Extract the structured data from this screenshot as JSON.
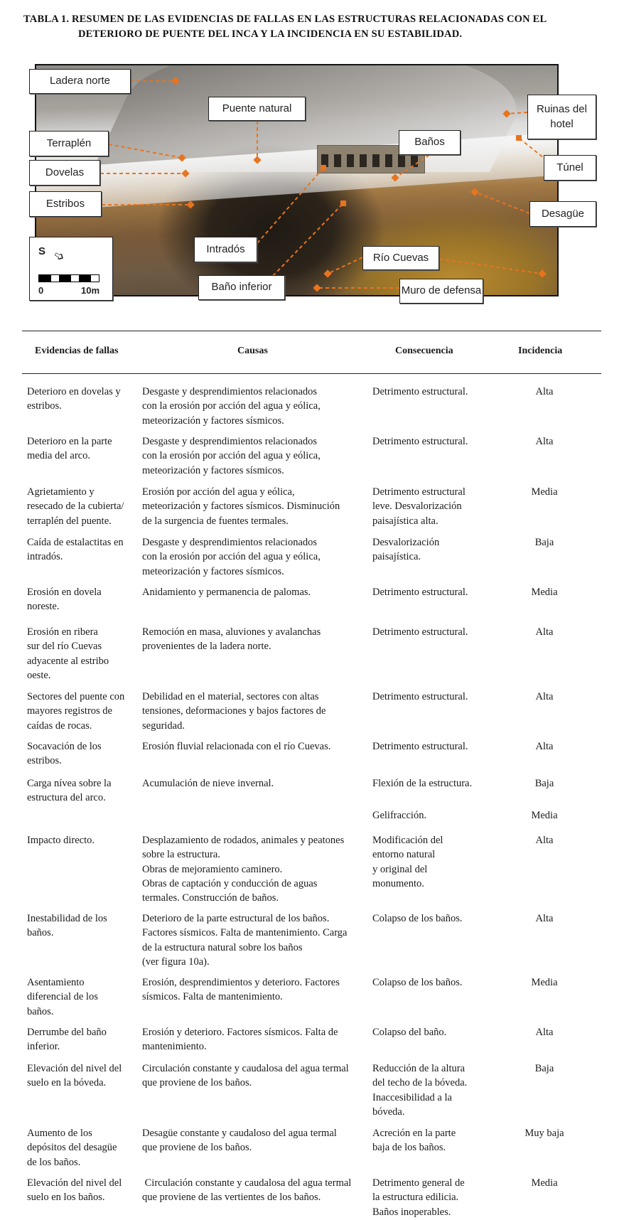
{
  "title": {
    "line1": "TABLA 1. RESUMEN DE LAS EVIDENCIAS DE FALLAS EN LAS ESTRUCTURAS RELACIONADAS CON EL",
    "line2": "DETERIORO DE PUENTE DEL INCA Y LA INCIDENCIA EN SU ESTABILIDAD."
  },
  "figure": {
    "labels": {
      "ladera_norte": "Ladera norte",
      "puente_natural": "Puente natural",
      "ruinas_hotel": "Ruinas del hotel",
      "terraplen": "Terraplén",
      "banos": "Baños",
      "dovelas": "Dovelas",
      "tunel": "Túnel",
      "estribos": "Estribos",
      "desague": "Desagüe",
      "intrados": "Intradós",
      "rio_cuevas": "Río Cuevas",
      "bano_inferior": "Baño inferior",
      "muro_defensa": "Muro de defensa"
    },
    "north_arrow_letter": "S",
    "scale_start": "0",
    "scale_end": "10m",
    "leader_color": "#e8741e"
  },
  "table": {
    "headers": [
      "Evidencias de fallas",
      "Causas",
      "Consecuencia",
      "Incidencia"
    ],
    "rows": [
      {
        "evidencia": [
          "Deterioro en dovelas y",
          "estribos."
        ],
        "causas": [
          "Desgaste y desprendimientos relacionados",
          "con la erosión por acción del agua y eólica,",
          "meteorización y factores sísmicos."
        ],
        "consecuencia": [
          "Detrimento estructural."
        ],
        "incidencia": "Alta"
      },
      {
        "evidencia": [
          "Deterioro en la parte",
          "media del arco."
        ],
        "causas": [
          "Desgaste y desprendimientos relacionados",
          "con la erosión por acción del agua y eólica,",
          "meteorización y factores sísmicos."
        ],
        "consecuencia": [
          "Detrimento estructural."
        ],
        "incidencia": "Alta"
      },
      {
        "evidencia": [
          "Agrietamiento y",
          "resecado de la cubierta/",
          "terraplén del puente."
        ],
        "causas": [
          "Erosión por acción del agua y eólica,",
          "meteorización y factores sísmicos. Disminución",
          "de la surgencia de fuentes termales."
        ],
        "consecuencia": [
          "Detrimento estructural",
          "leve. Desvalorización",
          "paisajística alta."
        ],
        "incidencia": "Media"
      },
      {
        "evidencia": [
          "Caída de estalactitas en",
          "intradós."
        ],
        "causas": [
          "Desgaste y desprendimientos relacionados",
          "con la erosión por acción del agua y eólica,",
          "meteorización y factores sísmicos."
        ],
        "consecuencia": [
          "Desvalorización",
          "paisajística."
        ],
        "incidencia": "Baja"
      },
      {
        "evidencia": [
          "Erosión en dovela",
          "noreste."
        ],
        "causas": [
          "Anidamiento y permanencia de palomas."
        ],
        "consecuencia": [
          "Detrimento estructural."
        ],
        "incidencia": "Media"
      },
      {
        "evidencia": [
          "Erosión en ribera",
          "sur del río Cuevas",
          "adyacente al estribo",
          "oeste."
        ],
        "causas": [
          "Remoción en masa, aluviones y avalanchas",
          "provenientes de la ladera norte."
        ],
        "consecuencia": [
          "Detrimento estructural."
        ],
        "incidencia": "Alta"
      },
      {
        "evidencia": [
          "Sectores del puente con",
          "mayores registros de",
          "caídas de rocas."
        ],
        "causas": [
          "Debilidad en el material, sectores con altas",
          "tensiones, deformaciones y bajos factores de",
          "seguridad."
        ],
        "consecuencia": [
          "Detrimento estructural."
        ],
        "incidencia": "Alta"
      },
      {
        "evidencia": [
          "Socavación de los",
          "estribos."
        ],
        "causas": [
          "Erosión fluvial relacionada con el río Cuevas."
        ],
        "consecuencia": [
          "Detrimento estructural."
        ],
        "incidencia": "Alta"
      },
      {
        "evidencia": [
          "Carga nívea sobre la",
          "estructura del arco."
        ],
        "causas": [
          "Acumulación de nieve invernal."
        ],
        "consecuencia": [
          "Flexión de la estructura."
        ],
        "incidencia": "Baja"
      },
      {
        "evidencia": [],
        "causas": [],
        "consecuencia": [
          "Gelifracción."
        ],
        "incidencia": "Media"
      },
      {
        "evidencia": [
          "Impacto directo."
        ],
        "causas": [
          "Desplazamiento de rodados, animales y peatones",
          "sobre la estructura.",
          "Obras de mejoramiento caminero.",
          "Obras de captación y conducción de aguas",
          "termales. Construcción de baños."
        ],
        "consecuencia": [
          "Modificación del",
          "entorno natural",
          "y original del",
          "monumento."
        ],
        "incidencia": "Alta"
      },
      {
        "evidencia": [
          "Inestabilidad de los",
          "baños."
        ],
        "causas": [
          "Deterioro de la parte estructural de los baños.",
          "Factores sísmicos. Falta de mantenimiento. Carga",
          "de la estructura natural sobre los baños",
          "(ver figura 10a)."
        ],
        "consecuencia": [
          "Colapso de los baños."
        ],
        "incidencia": "Alta"
      },
      {
        "evidencia": [
          "Asentamiento",
          "diferencial de los",
          "baños."
        ],
        "causas": [
          "Erosión, desprendimientos y deterioro. Factores",
          "sísmicos. Falta de mantenimiento."
        ],
        "consecuencia": [
          "Colapso de los baños."
        ],
        "incidencia": "Media"
      },
      {
        "evidencia": [
          "Derrumbe del baño",
          "inferior."
        ],
        "causas": [
          "Erosión y deterioro. Factores sísmicos. Falta de",
          "mantenimiento."
        ],
        "consecuencia": [
          "Colapso del baño."
        ],
        "incidencia": "Alta"
      },
      {
        "evidencia": [
          "Elevación del nivel del",
          "suelo en la bóveda."
        ],
        "causas": [
          "Circulación constante y caudalosa del agua termal",
          "que proviene de los baños."
        ],
        "consecuencia": [
          "Reducción de la altura",
          "del techo de la bóveda.",
          "Inaccesibilidad a la",
          "bóveda."
        ],
        "incidencia": "Baja"
      },
      {
        "evidencia": [
          "Aumento de los",
          "depósitos del desagüe",
          "de los baños."
        ],
        "causas": [
          "Desagüe constante y caudaloso del agua termal",
          "que proviene de los baños."
        ],
        "consecuencia": [
          "Acreción en la parte",
          "baja de los baños."
        ],
        "incidencia": "Muy baja"
      },
      {
        "evidencia": [
          "Elevación del nivel del",
          "suelo en los baños."
        ],
        "causas": [
          " Circulación constante y caudalosa del agua termal",
          "que proviene de las vertientes de los baños."
        ],
        "consecuencia": [
          "Detrimento general de",
          "la estructura edilicia.",
          "Baños inoperables."
        ],
        "incidencia": "Media"
      }
    ]
  }
}
